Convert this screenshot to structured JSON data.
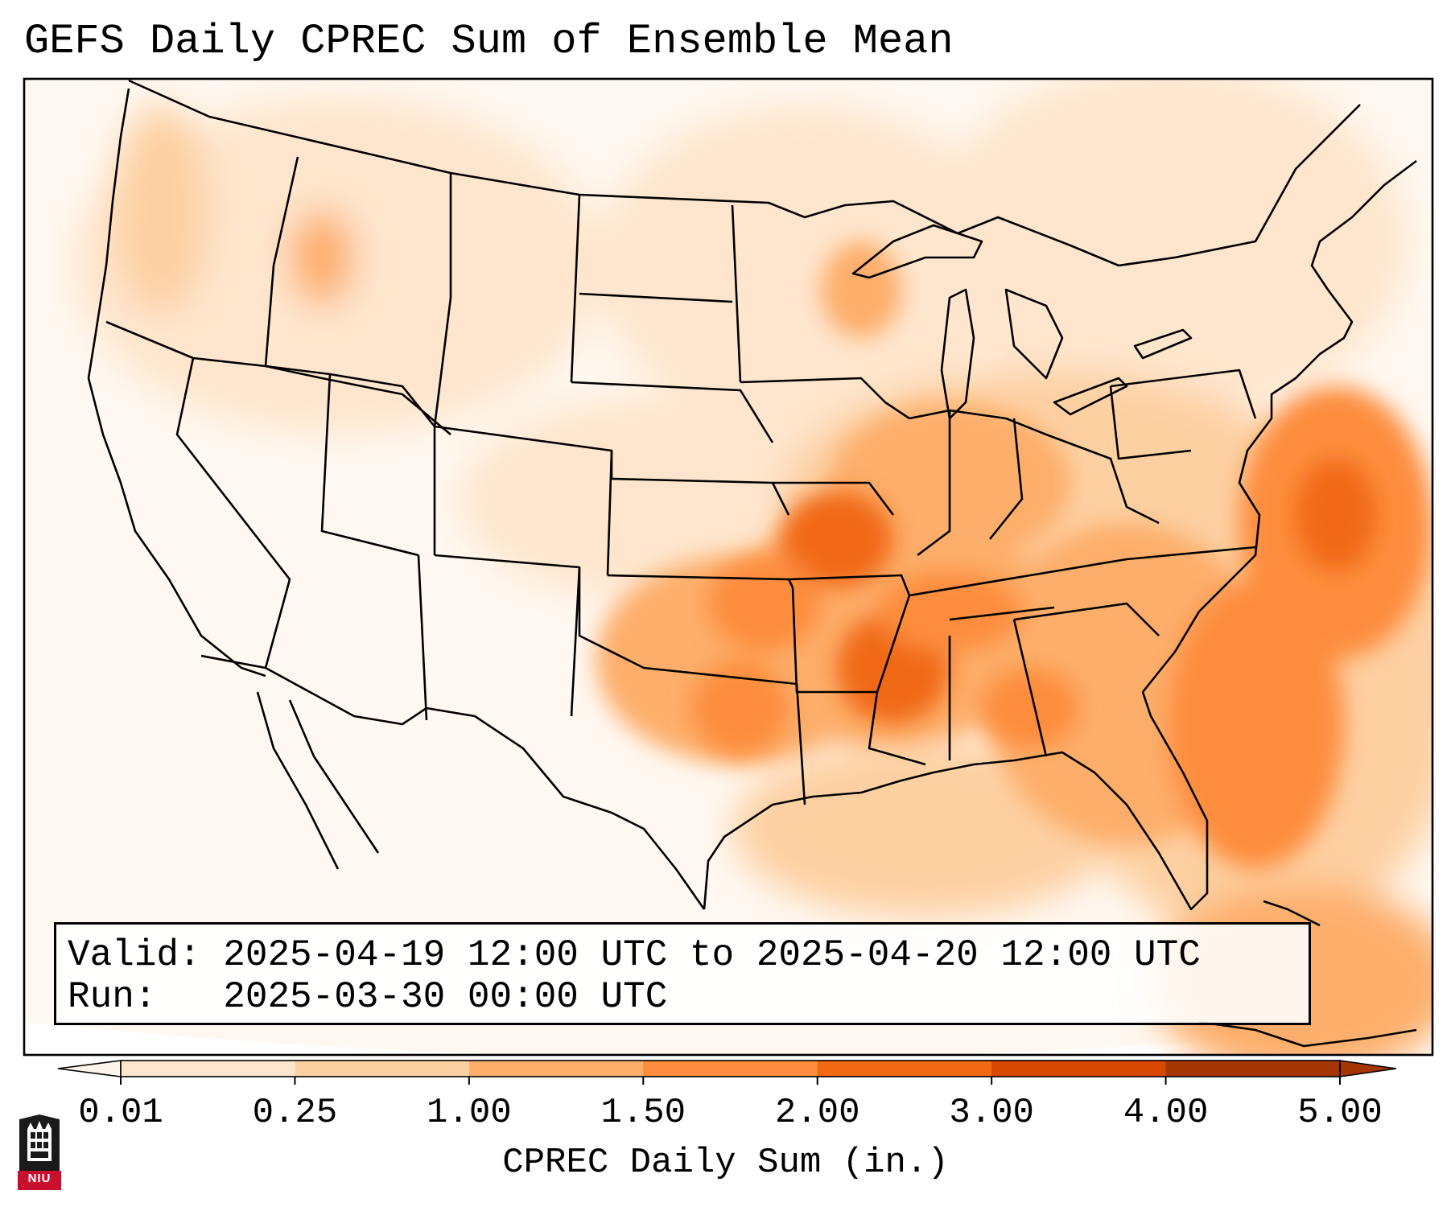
{
  "title": "GEFS Daily CPREC Sum of Ensemble Mean",
  "info": {
    "valid_line": "Valid: 2025-04-19 12:00 UTC to 2025-04-20 12:00 UTC",
    "run_line": "Run:   2025-03-30 00:00 UTC"
  },
  "colorbar": {
    "label": "CPREC Daily Sum (in.)",
    "ticks": [
      "0.01",
      "0.25",
      "1.00",
      "1.50",
      "2.00",
      "3.00",
      "4.00",
      "5.00"
    ],
    "colors": [
      "#fff5eb",
      "#fee6ce",
      "#fdd0a2",
      "#fdae6b",
      "#fd8d3c",
      "#f16913",
      "#d94801",
      "#a63603"
    ],
    "extend": "both"
  },
  "logo": {
    "text": "NIU",
    "color": "#c8102e"
  },
  "map": {
    "region": "Continental United States",
    "projection": "Lambert Conformal",
    "field": "CPREC daily sum, ensemble mean",
    "heavy_areas": [
      "Arkansas",
      "Mississippi",
      "Louisiana",
      "Tennessee",
      "Oklahoma",
      "Missouri",
      "Western Atlantic"
    ]
  }
}
